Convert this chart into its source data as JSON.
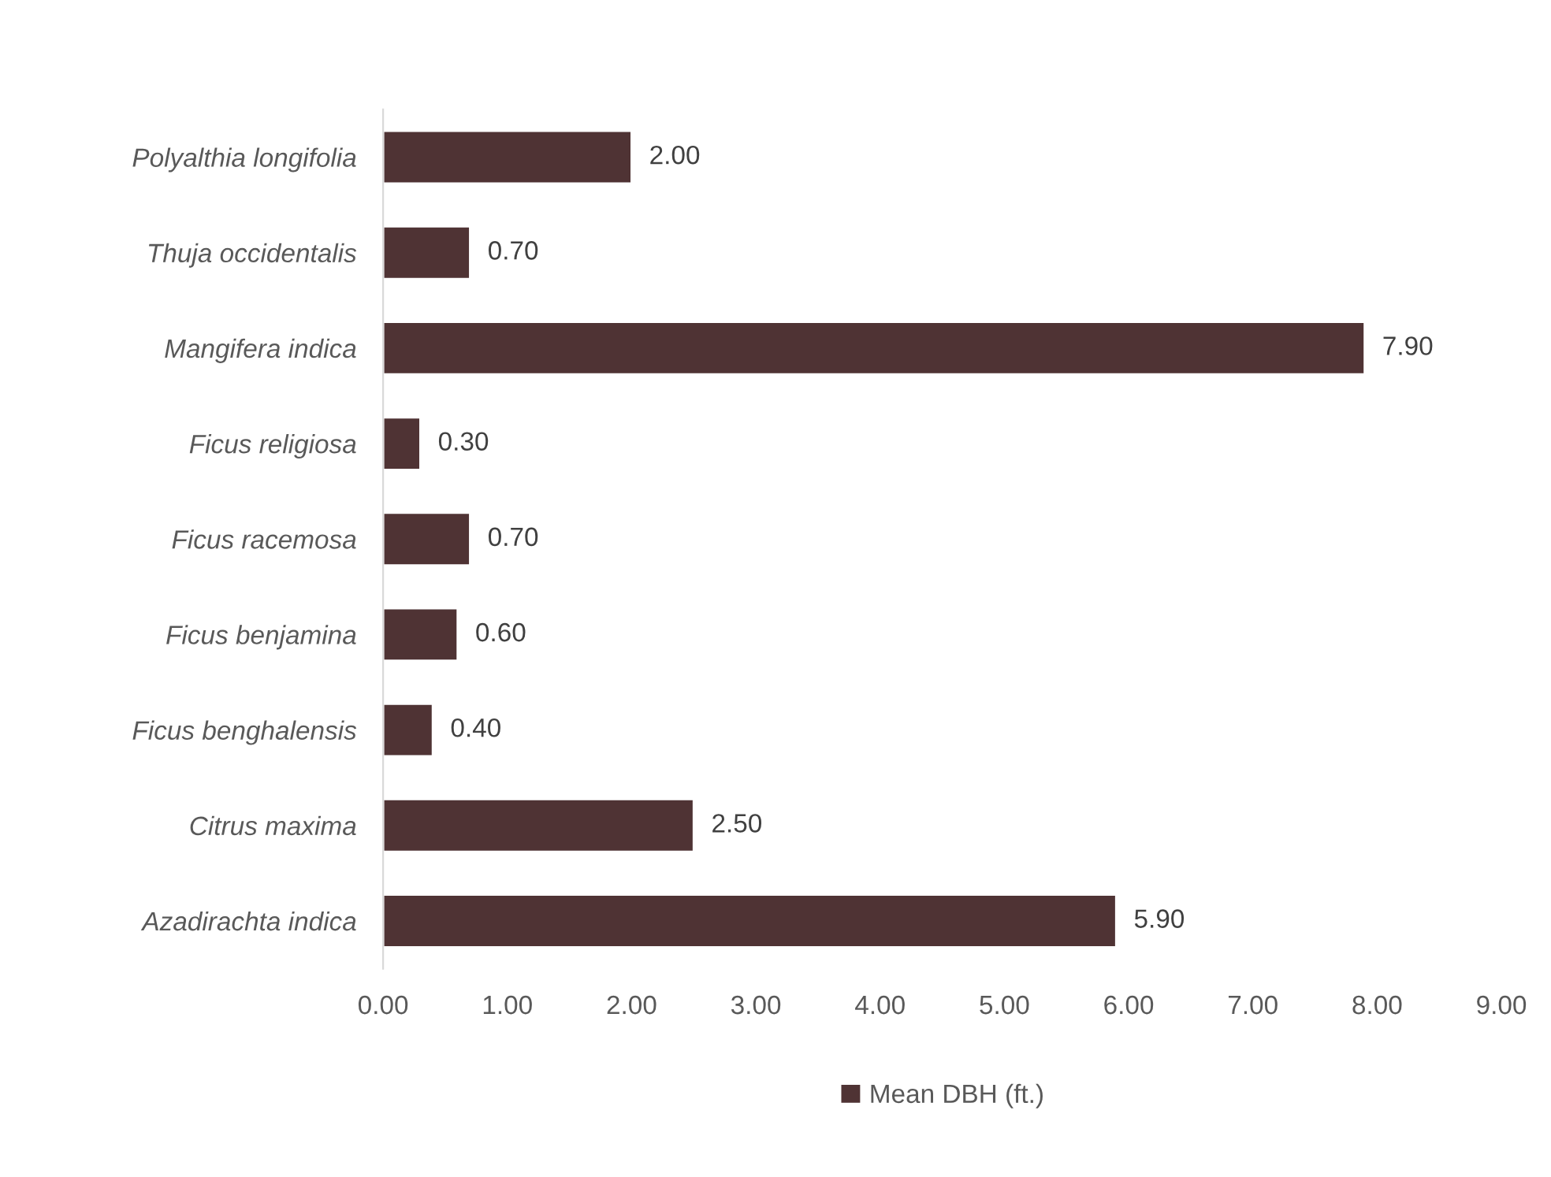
{
  "chart_data": {
    "type": "bar",
    "orientation": "horizontal",
    "categories": [
      "Polyalthia longifolia",
      "Thuja occidentalis",
      "Mangifera indica",
      "Ficus religiosa",
      "Ficus racemosa",
      "Ficus benjamina",
      "Ficus benghalensis",
      "Citrus maxima",
      "Azadirachta indica"
    ],
    "series": [
      {
        "name": "Mean DBH (ft.)",
        "color": "#4f3334",
        "values": [
          2.0,
          0.7,
          7.9,
          0.3,
          0.7,
          0.6,
          0.4,
          2.5,
          5.9
        ],
        "value_labels": [
          "2.00",
          "0.70",
          "7.90",
          "0.30",
          "0.70",
          "0.60",
          "0.40",
          "2.50",
          "5.90"
        ]
      }
    ],
    "xlim": [
      0,
      9
    ],
    "xticks": [
      {
        "value": 0,
        "label": "0.00"
      },
      {
        "value": 1,
        "label": "1.00"
      },
      {
        "value": 2,
        "label": "2.00"
      },
      {
        "value": 3,
        "label": "3.00"
      },
      {
        "value": 4,
        "label": "4.00"
      },
      {
        "value": 5,
        "label": "5.00"
      },
      {
        "value": 6,
        "label": "6.00"
      },
      {
        "value": 7,
        "label": "7.00"
      },
      {
        "value": 8,
        "label": "8.00"
      },
      {
        "value": 9,
        "label": "9.00"
      }
    ],
    "grid": false,
    "legend": "bottom"
  }
}
